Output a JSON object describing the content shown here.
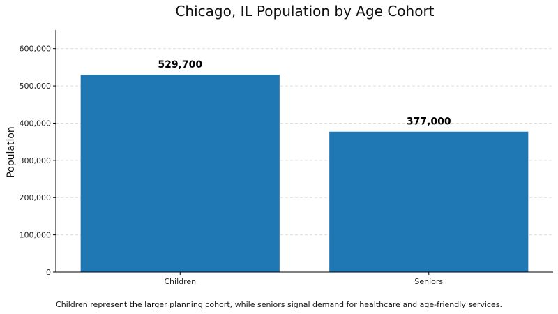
{
  "chart_data": {
    "type": "bar",
    "title": "Chicago, IL Population by Age Cohort",
    "xlabel": "",
    "ylabel": "Population",
    "categories": [
      "Children",
      "Seniors"
    ],
    "values": [
      529700,
      377000
    ],
    "value_labels": [
      "529,700",
      "377,000"
    ],
    "ylim": [
      0,
      650000
    ],
    "yticks": [
      0,
      100000,
      200000,
      300000,
      400000,
      500000,
      600000
    ],
    "ytick_labels": [
      "0",
      "100,000",
      "200,000",
      "300,000",
      "400,000",
      "500,000",
      "600,000"
    ],
    "grid": true,
    "bar_color": "#1f77b4",
    "grid_color": "#dddddd",
    "caption": "Children represent the larger planning cohort, while seniors signal demand for healthcare and age-friendly services."
  }
}
